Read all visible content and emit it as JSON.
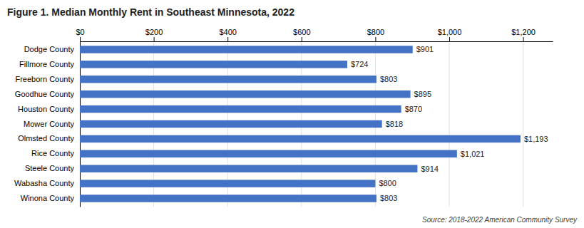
{
  "chart_data": {
    "type": "bar",
    "orientation": "horizontal",
    "title": "Figure 1. Median Monthly Rent in Southeast Minnesota, 2022",
    "annotations": [
      "Source: 2018-2022 American Community Survey"
    ],
    "categories": [
      "Dodge County",
      "Fillmore County",
      "Freeborn County",
      "Goodhue County",
      "Houston County",
      "Mower County",
      "Olmsted County",
      "Rice County",
      "Steele County",
      "Wabasha County",
      "Winona County"
    ],
    "values": [
      901,
      724,
      803,
      895,
      870,
      818,
      1193,
      1021,
      914,
      800,
      803
    ],
    "value_labels": [
      "$901",
      "$724",
      "$803",
      "$895",
      "$870",
      "$818",
      "$1,193",
      "$1,021",
      "$914",
      "$800",
      "$803"
    ],
    "data_labels": true,
    "color": "#4472C4",
    "xlim": [
      0,
      1280
    ],
    "xticks": [
      {
        "value": 0,
        "label": "$0"
      },
      {
        "value": 200,
        "label": "$200"
      },
      {
        "value": 400,
        "label": "$400"
      },
      {
        "value": 600,
        "label": "$600"
      },
      {
        "value": 800,
        "label": "$800"
      },
      {
        "value": 1000,
        "label": "$1,000"
      },
      {
        "value": 1200,
        "label": "$1,200"
      }
    ],
    "grid": true
  }
}
